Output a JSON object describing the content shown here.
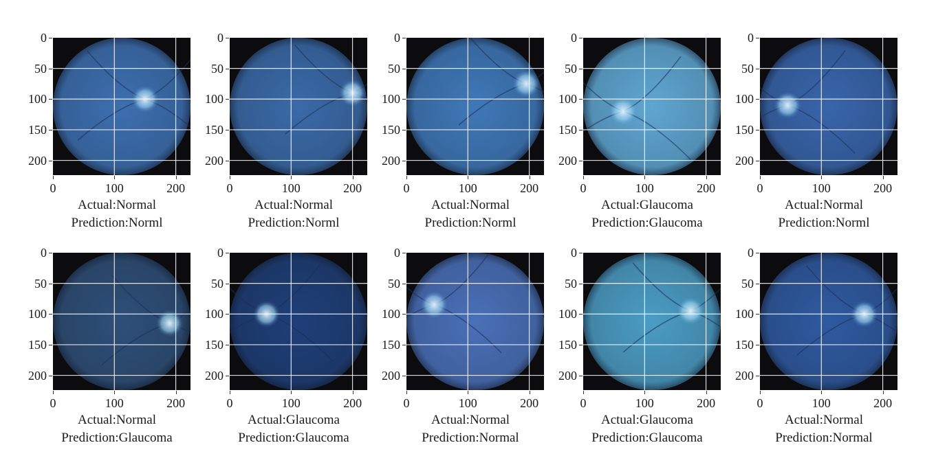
{
  "chart_data": {
    "type": "image-grid",
    "axes": {
      "xticks": [
        "0",
        "100",
        "200"
      ],
      "yticks": [
        "0",
        "50",
        "100",
        "150",
        "200"
      ],
      "xlim": [
        0,
        224
      ],
      "ylim": [
        224,
        0
      ]
    },
    "panels": [
      {
        "actual": "Actual:Normal",
        "prediction": "Prediction:Norml",
        "tint": "#3d6fb0",
        "disc": [
          150,
          100
        ]
      },
      {
        "actual": "Actual:Normal",
        "prediction": "Prediction:Norml",
        "tint": "#3a6aa8",
        "disc": [
          200,
          90
        ]
      },
      {
        "actual": "Actual:Normal",
        "prediction": "Prediction:Norml",
        "tint": "#3f78b8",
        "disc": [
          195,
          75
        ]
      },
      {
        "actual": "Actual:Glaucoma",
        "prediction": "Prediction:Glaucoma",
        "tint": "#5fa6d2",
        "disc": [
          65,
          120
        ]
      },
      {
        "actual": "Actual:Normal",
        "prediction": "Prediction:Norml",
        "tint": "#3865ab",
        "disc": [
          45,
          110
        ]
      },
      {
        "actual": "Actual:Normal",
        "prediction": "Prediction:Glaucoma",
        "tint": "#2e4f78",
        "disc": [
          190,
          115
        ]
      },
      {
        "actual": "Actual:Glaucoma",
        "prediction": "Prediction:Glaucoma",
        "tint": "#1f3f78",
        "disc": [
          60,
          100
        ]
      },
      {
        "actual": "Actual:Normal",
        "prediction": "Prediction:Normal",
        "tint": "#4a70b8",
        "disc": [
          45,
          85
        ]
      },
      {
        "actual": "Actual:Glaucoma",
        "prediction": "Prediction:Glaucoma",
        "tint": "#4b9cc4",
        "disc": [
          175,
          95
        ]
      },
      {
        "actual": "Actual:Normal",
        "prediction": "Prediction:Normal",
        "tint": "#2f5aa0",
        "disc": [
          170,
          100
        ]
      }
    ]
  }
}
